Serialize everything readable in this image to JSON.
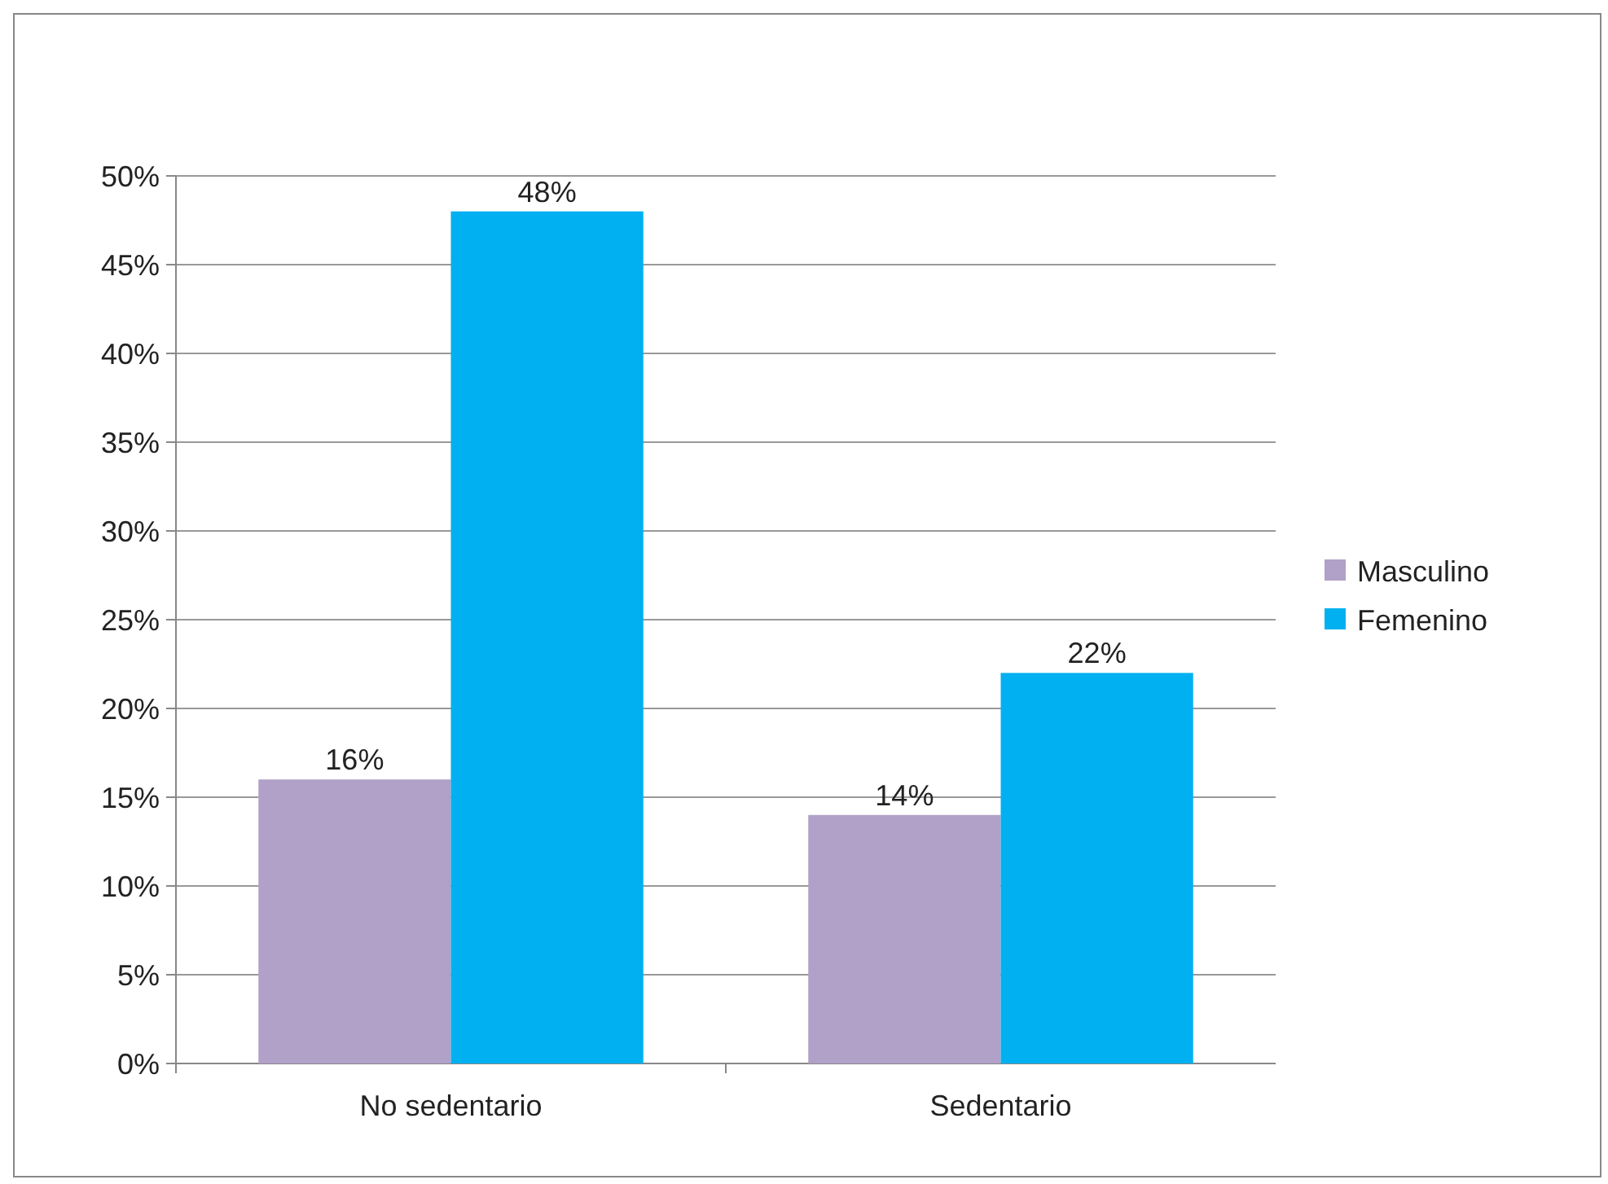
{
  "chart_data": {
    "type": "bar",
    "categories": [
      "No sedentario",
      "Sedentario"
    ],
    "series": [
      {
        "name": "Masculino",
        "color": "#b1a0c7",
        "values": [
          16,
          14
        ],
        "value_labels": [
          "16%",
          "14%"
        ]
      },
      {
        "name": "Femenino",
        "color": "#00b0f0",
        "values": [
          48,
          22
        ],
        "value_labels": [
          "48%",
          "22%"
        ]
      }
    ],
    "ylim": [
      0,
      50
    ],
    "yticks": [
      {
        "value": 0,
        "label": "0%"
      },
      {
        "value": 5,
        "label": "5%"
      },
      {
        "value": 10,
        "label": "10%"
      },
      {
        "value": 15,
        "label": "15%"
      },
      {
        "value": 20,
        "label": "20%"
      },
      {
        "value": 25,
        "label": "25%"
      },
      {
        "value": 30,
        "label": "30%"
      },
      {
        "value": 35,
        "label": "35%"
      },
      {
        "value": 40,
        "label": "40%"
      },
      {
        "value": 45,
        "label": "45%"
      },
      {
        "value": 50,
        "label": "50%"
      }
    ],
    "grid": "y",
    "legend": "right"
  }
}
